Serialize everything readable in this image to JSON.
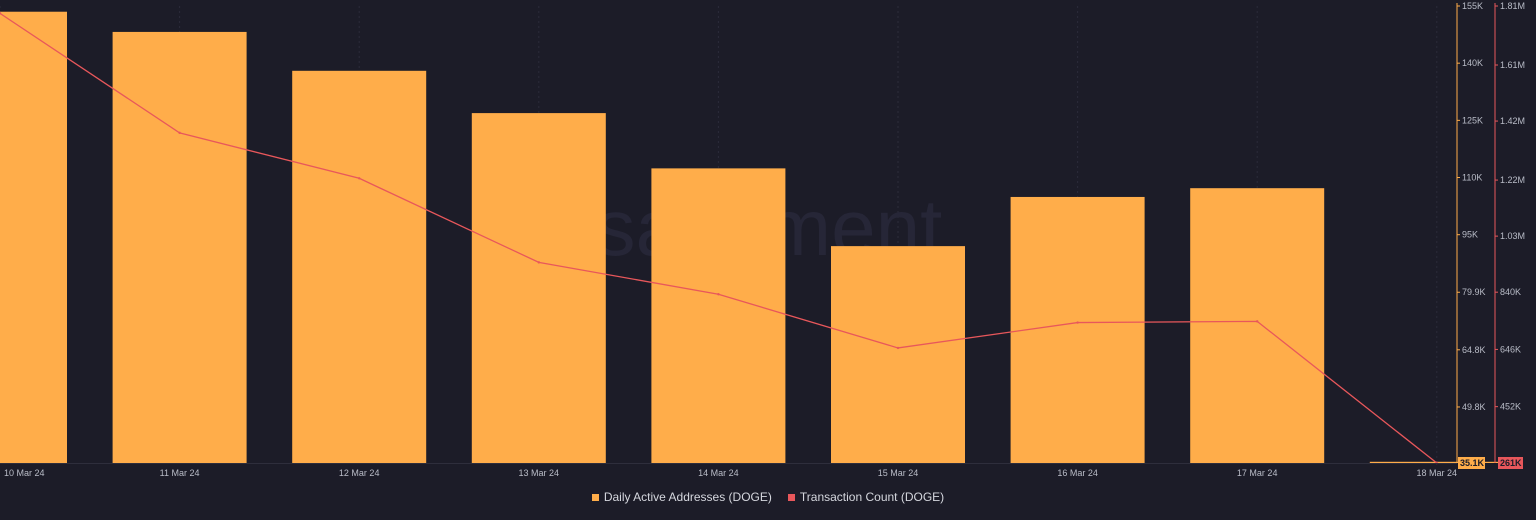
{
  "chart_data": {
    "type": "bar",
    "categories": [
      "10 Mar 24",
      "11 Mar 24",
      "12 Mar 24",
      "13 Mar 24",
      "14 Mar 24",
      "15 Mar 24",
      "16 Mar 24",
      "17 Mar 24",
      "18 Mar 24"
    ],
    "series": [
      {
        "name": "Daily Active Addresses (DOGE)",
        "kind": "bar",
        "axis": "y1",
        "color": "#ffad4a",
        "values": [
          153500,
          148200,
          138000,
          126900,
          112400,
          92000,
          104900,
          107200,
          35100
        ]
      },
      {
        "name": "Transaction Count (DOGE)",
        "kind": "line",
        "axis": "y2",
        "color": "#e8575b",
        "values": [
          1785000,
          1380000,
          1226000,
          941000,
          833000,
          651000,
          737000,
          741000,
          261000
        ]
      }
    ],
    "y1_axis": {
      "ylim": [
        35100,
        155000
      ],
      "ticks": [
        "155K",
        "140K",
        "125K",
        "110K",
        "95K",
        "79.9K",
        "64.8K",
        "49.8K"
      ],
      "tick_values": [
        155000,
        140000,
        125000,
        110000,
        95000,
        79900,
        64800,
        49800
      ],
      "current_label": "35.1K",
      "color": "#ffad4a"
    },
    "y2_axis": {
      "ylim": [
        261000,
        1810000
      ],
      "ticks": [
        "1.81M",
        "1.61M",
        "1.42M",
        "1.22M",
        "1.03M",
        "840K",
        "646K",
        "452K"
      ],
      "tick_values": [
        1810000,
        1610000,
        1420000,
        1220000,
        1030000,
        840000,
        646000,
        452000
      ],
      "current_label": "261K",
      "color": "#e8575b"
    },
    "watermark": "santiment.",
    "grid": true,
    "legend_position": "bottom-center"
  },
  "legend": {
    "daa_label": "Daily Active Addresses (DOGE)",
    "tx_label": "Transaction Count (DOGE)"
  }
}
